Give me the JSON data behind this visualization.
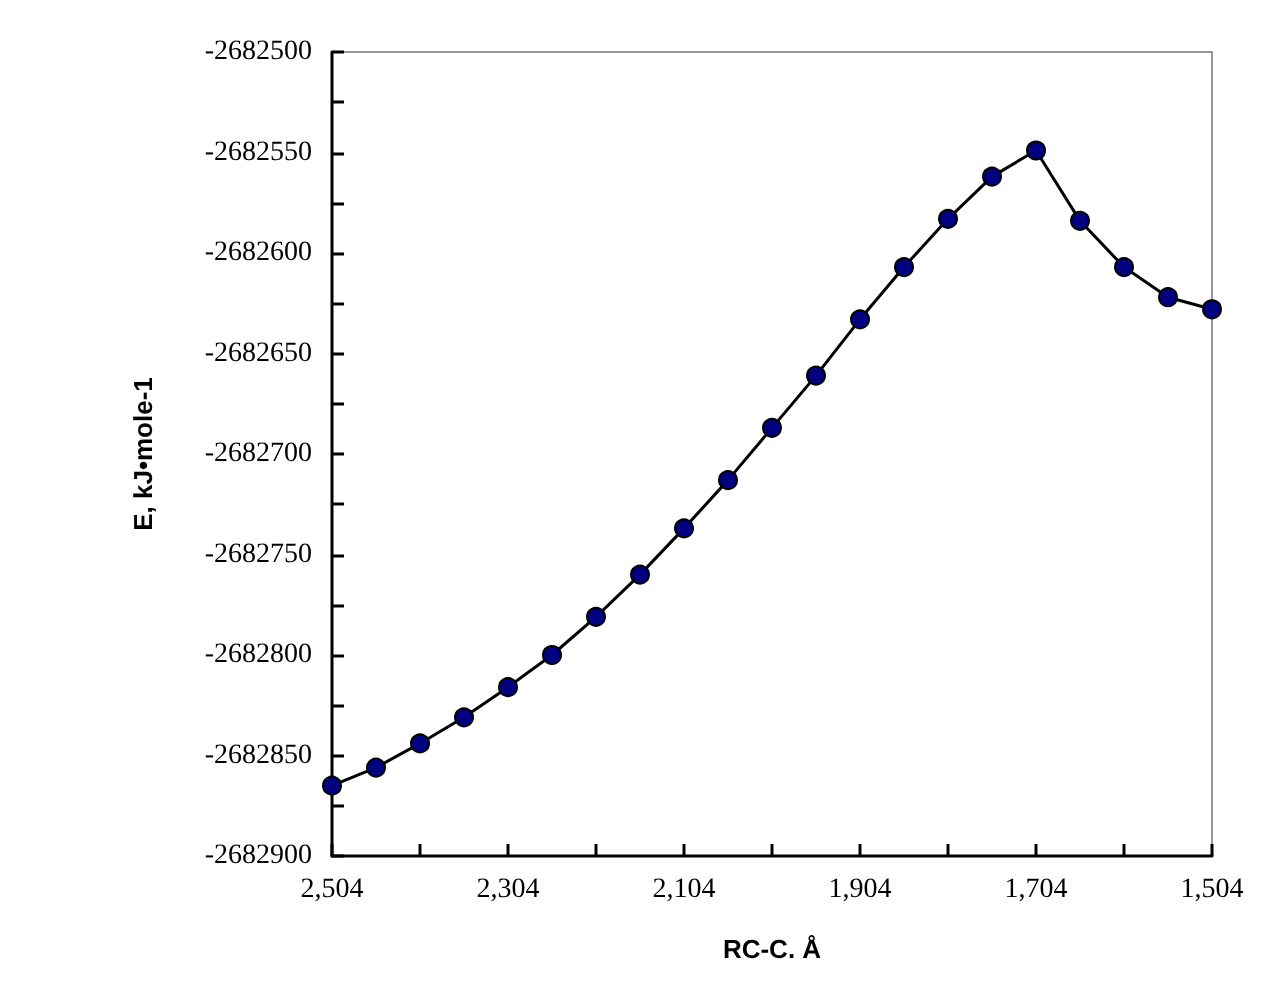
{
  "chart_data": {
    "type": "line",
    "xlabel": "RC-C. Å",
    "ylabel": "E, kJ•mole-1",
    "categories": [
      "2,504",
      null,
      null,
      null,
      "2,304",
      null,
      null,
      null,
      "2,104",
      null,
      null,
      null,
      "1,904",
      null,
      null,
      null,
      "1,704",
      null,
      null,
      null,
      "1,504"
    ],
    "series": [
      {
        "color": "#000080",
        "values": [
          -2682865,
          -2682856,
          -2682844,
          -2682831,
          -2682816,
          -2682800,
          -2682781,
          -2682760,
          -2682737,
          -2682713,
          -2682687,
          -2682661,
          -2682633,
          -2682607,
          -2682583,
          -2682562,
          -2682549,
          -2682584,
          -2682607,
          -2682622,
          -2682628
        ]
      }
    ],
    "ylim": [
      -2682900,
      -2682500
    ],
    "yticks": [
      -2682900,
      {
        "value": -2682875,
        "label": null
      },
      -2682850,
      {
        "value": -2682825,
        "label": null
      },
      -2682800,
      {
        "value": -2682775,
        "label": null
      },
      -2682750,
      {
        "value": -2682725,
        "label": null
      },
      -2682700,
      {
        "value": -2682675,
        "label": null
      },
      -2682650,
      {
        "value": -2682625,
        "label": null
      },
      -2682600,
      {
        "value": -2682575,
        "label": null
      },
      -2682550,
      {
        "value": -2682525,
        "label": null
      },
      -2682500
    ],
    "marker": "circle",
    "line_style": "solid",
    "grid": false
  }
}
